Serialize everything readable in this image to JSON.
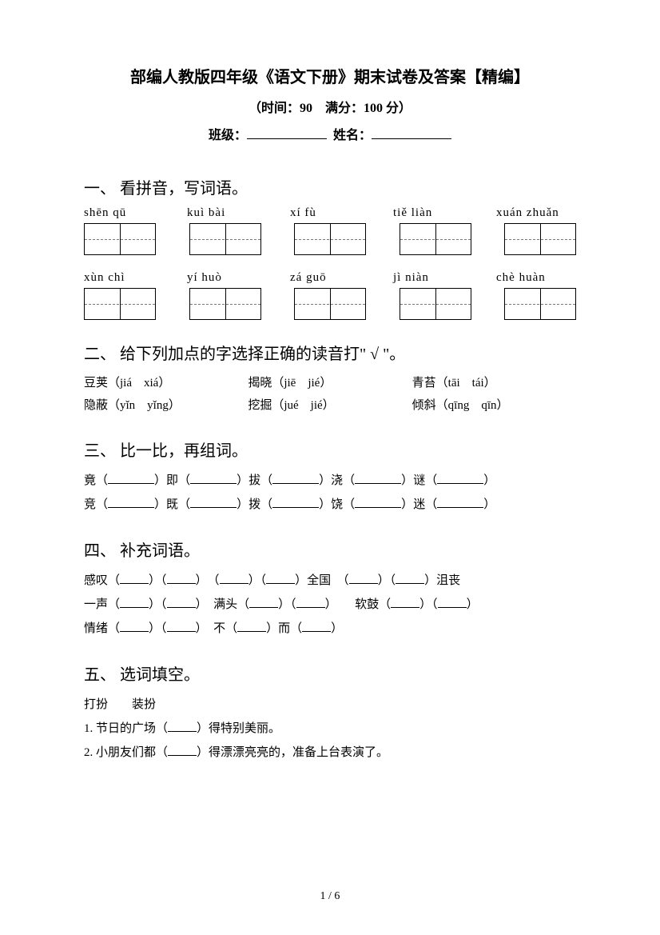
{
  "header": {
    "title": "部编人教版四年级《语文下册》期末试卷及答案【精编】",
    "subtitle": "（时间：90　满分：100 分）",
    "class_label": "班级：",
    "name_label": "姓名："
  },
  "section1": {
    "heading": "一、 看拼音，写词语。",
    "row1": [
      "shēn  qū",
      "kuì  bài",
      "xí  fù",
      "tiě  liàn",
      "xuán zhuǎn"
    ],
    "row2": [
      "xùn  chì",
      "yí  huò",
      "zá  guō",
      "jì  niàn",
      "chè  huàn"
    ]
  },
  "section2": {
    "heading": "二、 给下列加点的字选择正确的读音打\" √ \"。",
    "items": [
      {
        "word": "豆荚",
        "opts": "（jiá　xiá）"
      },
      {
        "word": "揭晓",
        "opts": "（jiē　jié）"
      },
      {
        "word": "青苔",
        "opts": "（tāi　tái）"
      },
      {
        "word": "隐蔽",
        "opts": "（yǐn　yǐng）"
      },
      {
        "word": "挖掘",
        "opts": "（jué　jié）"
      },
      {
        "word": "倾斜",
        "opts": "（qīng　qīn）"
      }
    ]
  },
  "section3": {
    "heading": "三、 比一比，再组词。",
    "line1_chars": [
      "竟",
      "即",
      "拔",
      "浇",
      "谜"
    ],
    "line2_chars": [
      "竞",
      "既",
      "拨",
      "饶",
      "迷"
    ]
  },
  "section4": {
    "heading": "四、 补充词语。",
    "line1": {
      "a": "感叹",
      "b": "全国",
      "c": "沮丧"
    },
    "line2": {
      "a": "一声",
      "b": "满头",
      "c": "软鼓"
    },
    "line3": {
      "a": "情绪",
      "b": "不",
      "c": "而"
    }
  },
  "section5": {
    "heading": "五、 选词填空。",
    "words": "打扮　　装扮",
    "q1": "1. 节日的广场（",
    "q1_end": "）得特别美丽。",
    "q2": "2. 小朋友们都（",
    "q2_end": "）得漂漂亮亮的，准备上台表演了。"
  },
  "footer": {
    "page": "1 / 6"
  }
}
